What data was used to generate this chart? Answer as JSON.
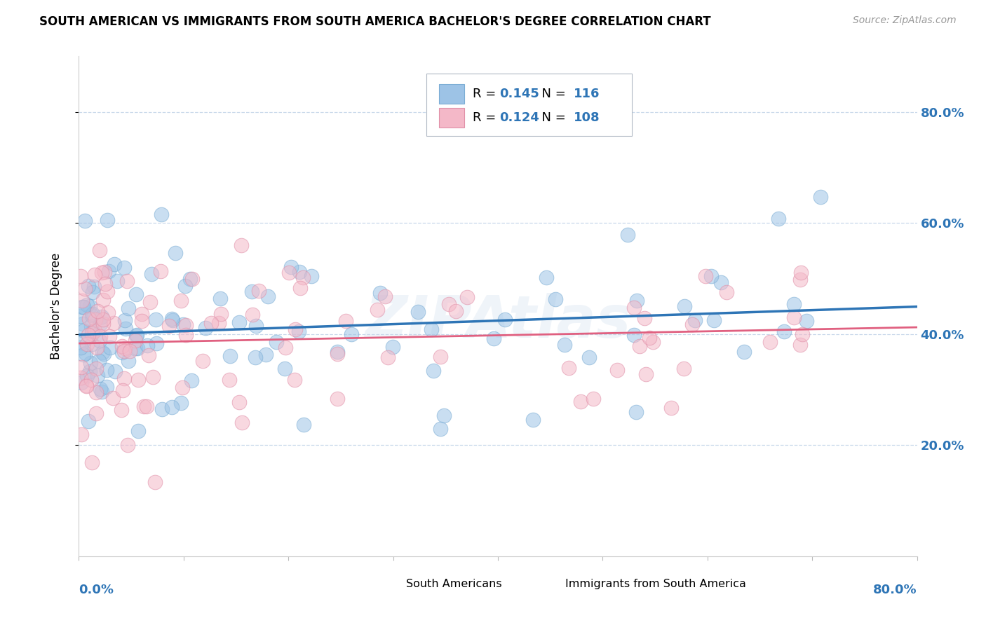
{
  "title": "SOUTH AMERICAN VS IMMIGRANTS FROM SOUTH AMERICA BACHELOR'S DEGREE CORRELATION CHART",
  "source": "Source: ZipAtlas.com",
  "ylabel": "Bachelor's Degree",
  "xmin": 0.0,
  "xmax": 0.8,
  "ymin": 0.0,
  "ymax": 0.9,
  "ytick_vals": [
    0.2,
    0.4,
    0.6,
    0.8
  ],
  "ytick_labels": [
    "20.0%",
    "40.0%",
    "60.0%",
    "80.0%"
  ],
  "blue_fill_color": "#9dc3e6",
  "pink_fill_color": "#f4b8c8",
  "blue_edge_color": "#7badd4",
  "pink_edge_color": "#e090a8",
  "blue_line_color": "#2e75b6",
  "pink_line_color": "#e06080",
  "R_blue": 0.145,
  "N_blue": 116,
  "R_pink": 0.124,
  "N_pink": 108,
  "legend_label_blue": "South Americans",
  "legend_label_pink": "Immigrants from South America",
  "watermark": "ZIPAtlas",
  "axis_label_color": "#2e75b6",
  "grid_color": "#c8d8ea",
  "title_fontsize": 12,
  "source_fontsize": 10,
  "axis_tick_fontsize": 13,
  "scatter_alpha": 0.55,
  "scatter_size": 220
}
